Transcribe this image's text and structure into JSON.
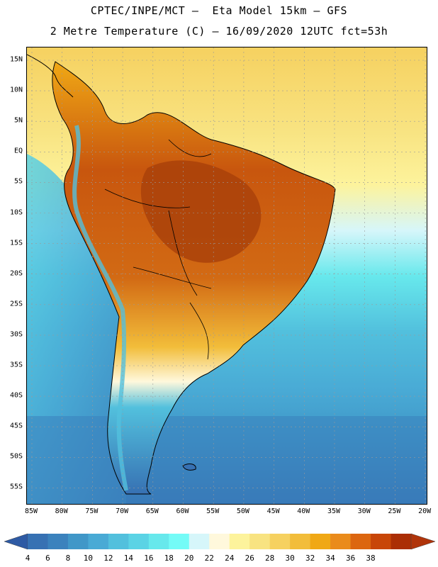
{
  "header": {
    "title_line1": "CPTEC/INPE/MCT –  Eta Model 15km – GFS",
    "title_line2": "2 Metre Temperature (C) – 16/09/2020 12UTC fct=53h"
  },
  "map": {
    "lat_labels": [
      "15N",
      "10N",
      "5N",
      "EQ",
      "5S",
      "10S",
      "15S",
      "20S",
      "25S",
      "30S",
      "35S",
      "40S",
      "45S",
      "50S",
      "55S"
    ],
    "lon_labels": [
      "85W",
      "80W",
      "75W",
      "70W",
      "65W",
      "60W",
      "55W",
      "50W",
      "45W",
      "40W",
      "35W",
      "30W",
      "25W",
      "20W"
    ],
    "region": "South America",
    "variable": "2 Metre Temperature (C)"
  },
  "colorbar": {
    "tick_labels": [
      "4",
      "6",
      "8",
      "10",
      "12",
      "14",
      "16",
      "18",
      "20",
      "22",
      "24",
      "26",
      "28",
      "30",
      "32",
      "34",
      "36",
      "38"
    ],
    "colors": [
      "#3771b3",
      "#3b82bd",
      "#4097c8",
      "#49aad5",
      "#52c0dd",
      "#5bd3e5",
      "#67e8ec",
      "#74fbf7",
      "#d6f6fa",
      "#fff8dc",
      "#fdf39c",
      "#f8e381",
      "#f6d160",
      "#f2bd3a",
      "#f0a815",
      "#ea8b1b",
      "#dc6610",
      "#c84608",
      "#ab2e05"
    ],
    "under_color": "#2e5aa4",
    "over_color": "#b0340a"
  },
  "colors": {
    "warm_land": "#c0580f",
    "hot_core": "#a8400a",
    "ocean_cool": "#49aad5",
    "ocean_cold": "#3771b3"
  }
}
